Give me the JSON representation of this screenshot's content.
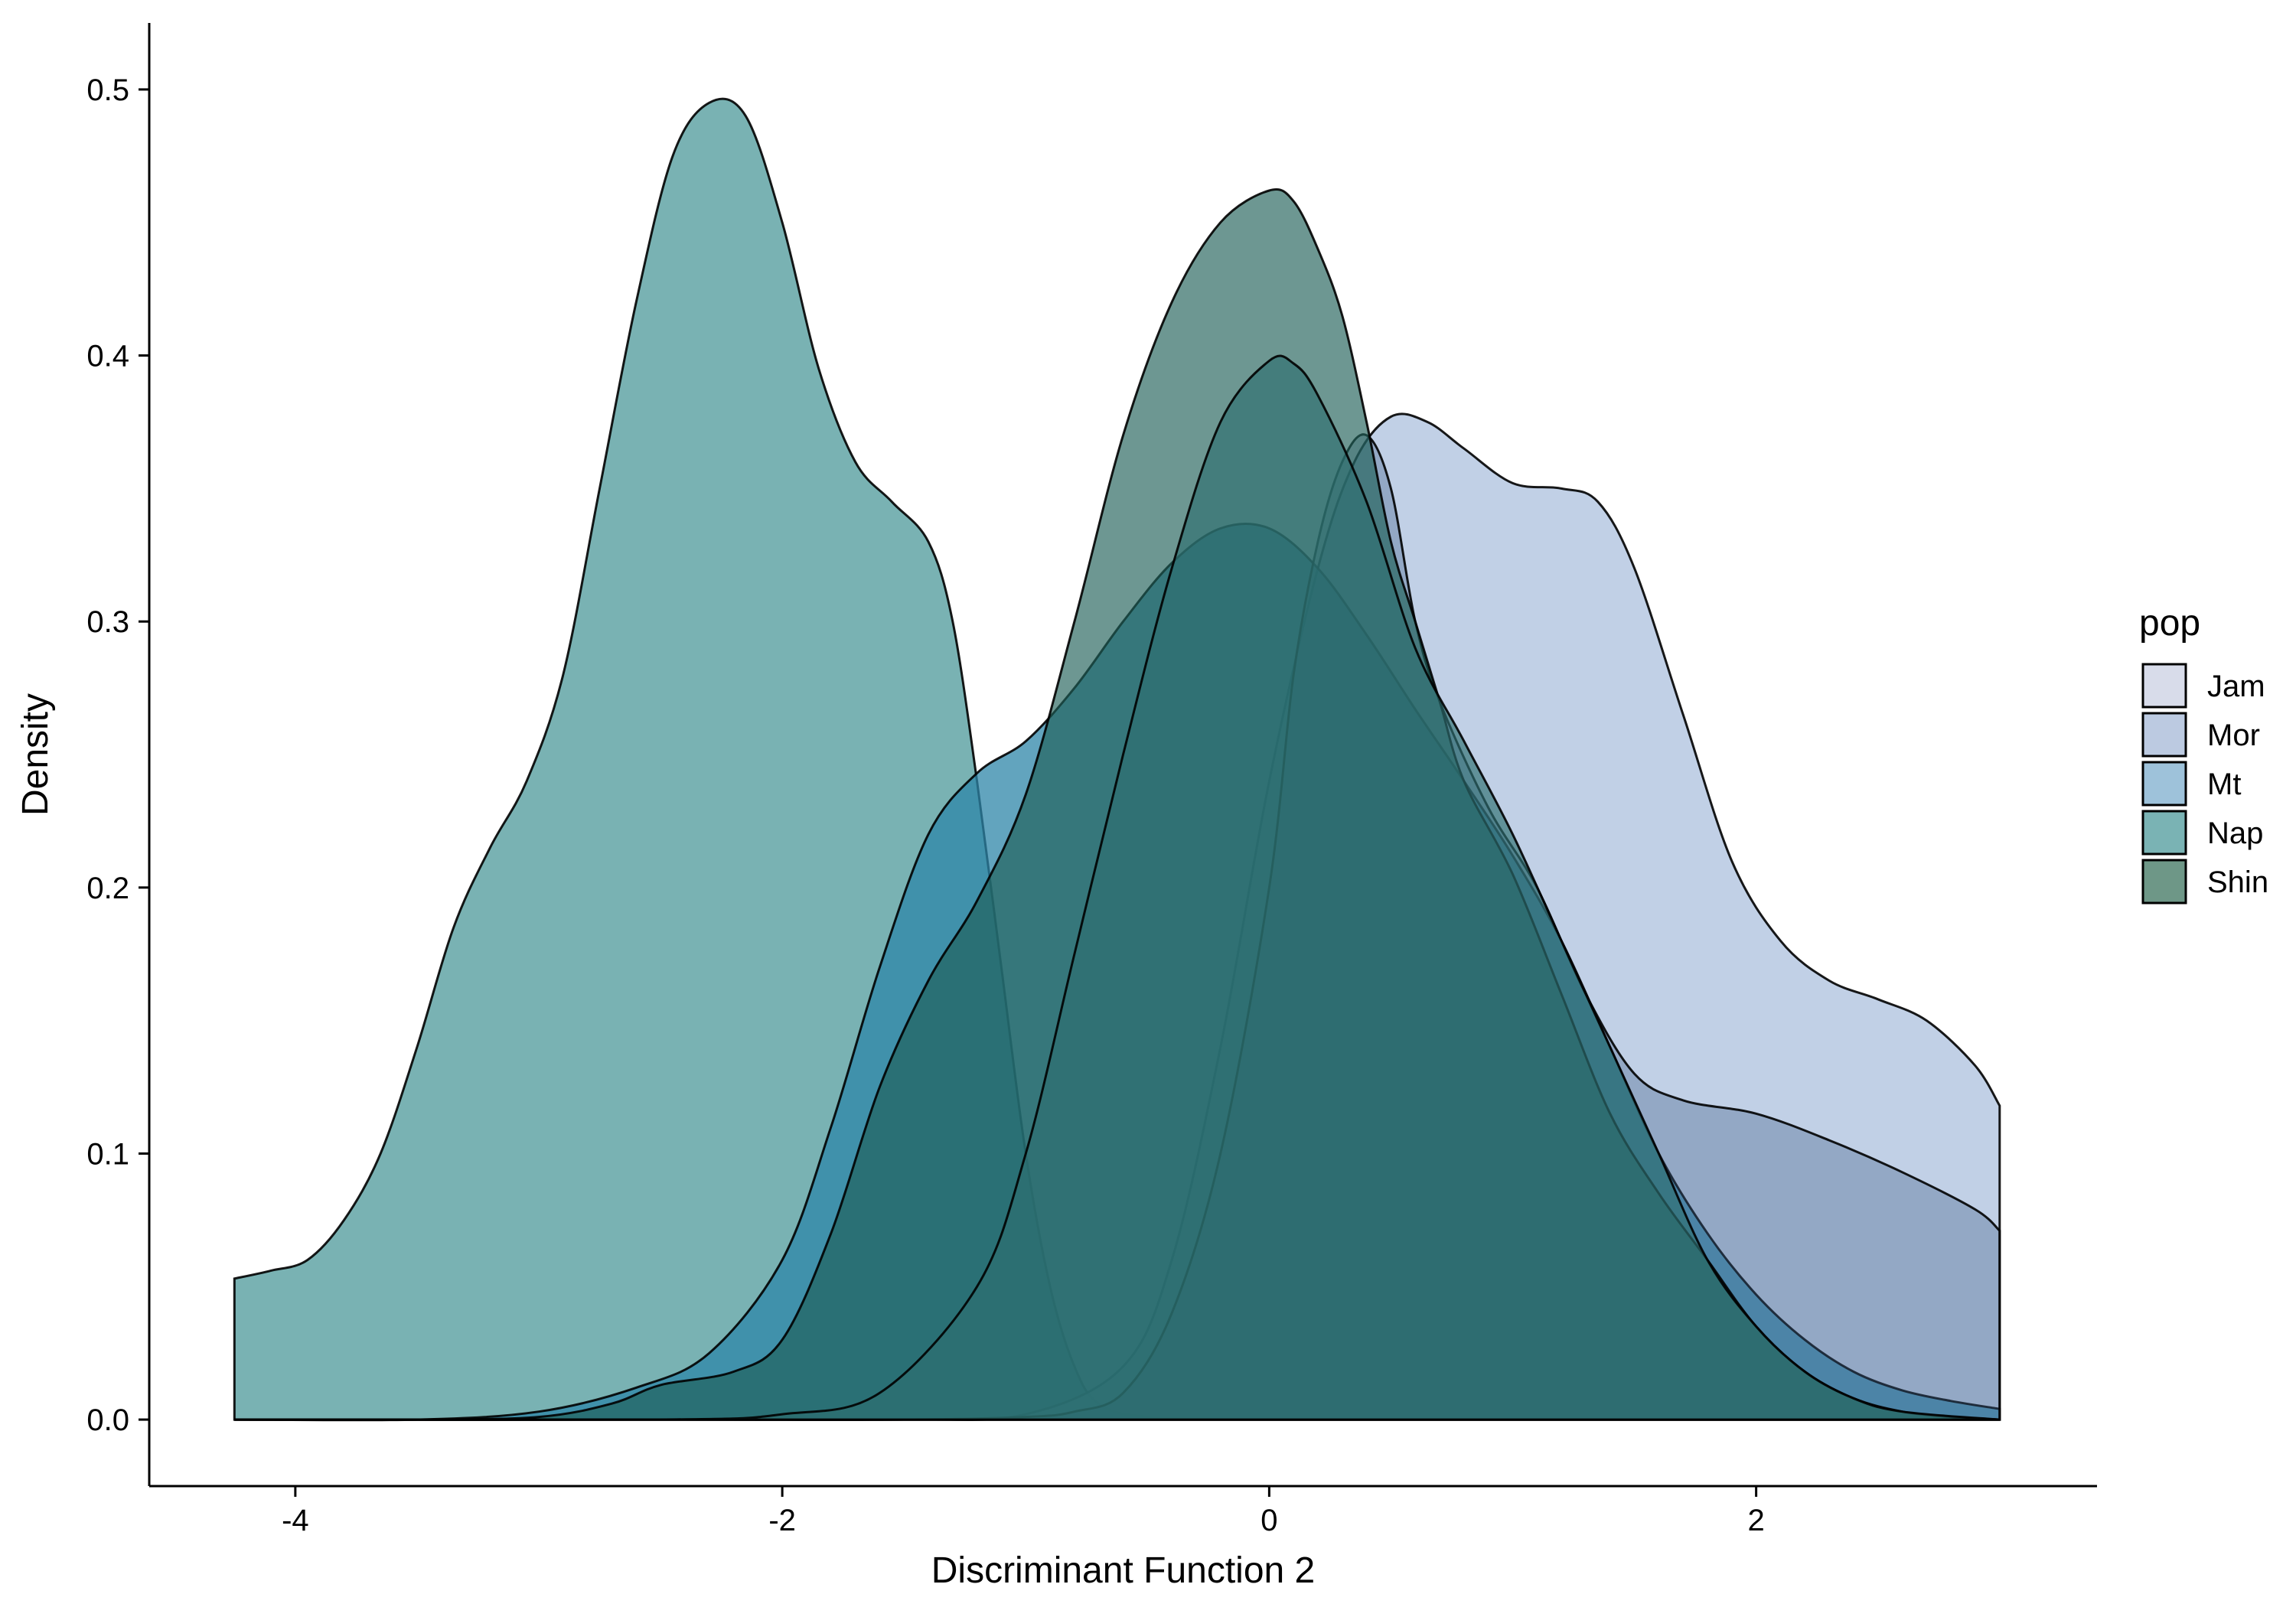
{
  "chart_data": {
    "type": "area",
    "title": "",
    "xlabel": "Discriminant Function 2",
    "ylabel": "Density",
    "xlim": [
      -4.6,
      3.4
    ],
    "ylim": [
      -0.025,
      0.525
    ],
    "xticks": [
      -4,
      -2,
      0,
      2
    ],
    "xtick_labels": [
      "-4",
      "-2",
      "0",
      "2"
    ],
    "yticks": [
      0.0,
      0.1,
      0.2,
      0.3,
      0.4,
      0.5
    ],
    "ytick_labels": [
      "0.0",
      "0.1",
      "0.2",
      "0.3",
      "0.4",
      "0.5"
    ],
    "grid": false,
    "legend": {
      "title": "pop",
      "position": "right"
    },
    "series": [
      {
        "name": "Jam",
        "color": "#3f5f87",
        "fill_opacity": 0.35,
        "points": [
          [
            -4.25,
            0.0
          ],
          [
            -2.5,
            0.0
          ],
          [
            -1.5,
            0.0
          ],
          [
            -1.0,
            0.001
          ],
          [
            -0.8,
            0.003
          ],
          [
            -0.6,
            0.01
          ],
          [
            -0.4,
            0.04
          ],
          [
            -0.2,
            0.1
          ],
          [
            0.0,
            0.2
          ],
          [
            0.1,
            0.28
          ],
          [
            0.2,
            0.33
          ],
          [
            0.3,
            0.36
          ],
          [
            0.4,
            0.37
          ],
          [
            0.5,
            0.35
          ],
          [
            0.6,
            0.3
          ],
          [
            0.7,
            0.27
          ],
          [
            0.9,
            0.23
          ],
          [
            1.1,
            0.2
          ],
          [
            1.3,
            0.16
          ],
          [
            1.5,
            0.13
          ],
          [
            1.7,
            0.12
          ],
          [
            2.0,
            0.115
          ],
          [
            2.3,
            0.105
          ],
          [
            2.6,
            0.093
          ],
          [
            2.9,
            0.079
          ],
          [
            3.0,
            0.071
          ]
        ]
      },
      {
        "name": "Mor",
        "color": "#b6c8e2",
        "fill_opacity": 0.85,
        "points": [
          [
            -4.25,
            0.0
          ],
          [
            -2.5,
            0.0
          ],
          [
            -1.5,
            0.0
          ],
          [
            -1.0,
            0.002
          ],
          [
            -0.6,
            0.02
          ],
          [
            -0.4,
            0.06
          ],
          [
            -0.2,
            0.14
          ],
          [
            0.0,
            0.24
          ],
          [
            0.2,
            0.32
          ],
          [
            0.35,
            0.36
          ],
          [
            0.5,
            0.377
          ],
          [
            0.65,
            0.375
          ],
          [
            0.8,
            0.365
          ],
          [
            1.0,
            0.352
          ],
          [
            1.2,
            0.35
          ],
          [
            1.35,
            0.345
          ],
          [
            1.5,
            0.32
          ],
          [
            1.7,
            0.265
          ],
          [
            1.9,
            0.21
          ],
          [
            2.1,
            0.18
          ],
          [
            2.3,
            0.165
          ],
          [
            2.5,
            0.158
          ],
          [
            2.7,
            0.15
          ],
          [
            2.9,
            0.133
          ],
          [
            3.0,
            0.118
          ]
        ]
      },
      {
        "name": "Mt",
        "color": "#2e86a8",
        "fill_opacity": 0.75,
        "points": [
          [
            -4.25,
            0.0
          ],
          [
            -3.5,
            0.0
          ],
          [
            -3.0,
            0.003
          ],
          [
            -2.6,
            0.012
          ],
          [
            -2.3,
            0.025
          ],
          [
            -2.0,
            0.06
          ],
          [
            -1.8,
            0.11
          ],
          [
            -1.6,
            0.17
          ],
          [
            -1.4,
            0.22
          ],
          [
            -1.2,
            0.243
          ],
          [
            -1.0,
            0.255
          ],
          [
            -0.8,
            0.275
          ],
          [
            -0.6,
            0.3
          ],
          [
            -0.4,
            0.322
          ],
          [
            -0.2,
            0.335
          ],
          [
            0.0,
            0.335
          ],
          [
            0.2,
            0.32
          ],
          [
            0.4,
            0.295
          ],
          [
            0.6,
            0.267
          ],
          [
            0.8,
            0.24
          ],
          [
            1.0,
            0.212
          ],
          [
            1.2,
            0.18
          ],
          [
            1.4,
            0.14
          ],
          [
            1.6,
            0.1
          ],
          [
            1.8,
            0.07
          ],
          [
            2.0,
            0.047
          ],
          [
            2.2,
            0.03
          ],
          [
            2.4,
            0.018
          ],
          [
            2.6,
            0.011
          ],
          [
            2.8,
            0.007
          ],
          [
            3.0,
            0.004
          ]
        ]
      },
      {
        "name": "Nap",
        "color": "#62a4a6",
        "fill_opacity": 0.85,
        "points": [
          [
            -4.25,
            0.053
          ],
          [
            -4.1,
            0.056
          ],
          [
            -3.95,
            0.06
          ],
          [
            -3.8,
            0.075
          ],
          [
            -3.65,
            0.1
          ],
          [
            -3.5,
            0.14
          ],
          [
            -3.35,
            0.185
          ],
          [
            -3.2,
            0.215
          ],
          [
            -3.05,
            0.24
          ],
          [
            -2.9,
            0.28
          ],
          [
            -2.75,
            0.35
          ],
          [
            -2.6,
            0.42
          ],
          [
            -2.45,
            0.475
          ],
          [
            -2.3,
            0.495
          ],
          [
            -2.15,
            0.49
          ],
          [
            -2.0,
            0.45
          ],
          [
            -1.85,
            0.395
          ],
          [
            -1.7,
            0.36
          ],
          [
            -1.55,
            0.345
          ],
          [
            -1.4,
            0.33
          ],
          [
            -1.3,
            0.3
          ],
          [
            -1.2,
            0.24
          ],
          [
            -1.1,
            0.17
          ],
          [
            -1.0,
            0.1
          ],
          [
            -0.9,
            0.05
          ],
          [
            -0.8,
            0.02
          ],
          [
            -0.7,
            0.006
          ],
          [
            -0.5,
            0.001
          ],
          [
            0.0,
            0.0
          ],
          [
            1.0,
            0.0
          ],
          [
            3.0,
            0.0
          ]
        ]
      },
      {
        "name": "Shin",
        "color": "#1f5f57",
        "fill_opacity": 0.65,
        "points": [
          [
            -4.25,
            0.0
          ],
          [
            -3.5,
            0.0
          ],
          [
            -3.0,
            0.001
          ],
          [
            -2.7,
            0.006
          ],
          [
            -2.5,
            0.013
          ],
          [
            -2.2,
            0.018
          ],
          [
            -2.0,
            0.03
          ],
          [
            -1.8,
            0.07
          ],
          [
            -1.6,
            0.125
          ],
          [
            -1.4,
            0.165
          ],
          [
            -1.2,
            0.195
          ],
          [
            -1.0,
            0.235
          ],
          [
            -0.8,
            0.3
          ],
          [
            -0.6,
            0.37
          ],
          [
            -0.4,
            0.42
          ],
          [
            -0.2,
            0.45
          ],
          [
            0.0,
            0.462
          ],
          [
            0.1,
            0.458
          ],
          [
            0.2,
            0.44
          ],
          [
            0.3,
            0.415
          ],
          [
            0.4,
            0.375
          ],
          [
            0.5,
            0.33
          ],
          [
            0.6,
            0.3
          ],
          [
            0.7,
            0.27
          ],
          [
            0.8,
            0.24
          ],
          [
            1.0,
            0.205
          ],
          [
            1.2,
            0.16
          ],
          [
            1.4,
            0.115
          ],
          [
            1.6,
            0.085
          ],
          [
            1.8,
            0.06
          ],
          [
            2.0,
            0.035
          ],
          [
            2.2,
            0.018
          ],
          [
            2.4,
            0.008
          ],
          [
            2.6,
            0.003
          ],
          [
            2.8,
            0.001
          ],
          [
            3.0,
            0.0
          ]
        ]
      },
      {
        "name": "",
        "color": "#2e6f70",
        "fill_opacity": 0.65,
        "points": [
          [
            -4.25,
            0.0
          ],
          [
            -2.5,
            0.0
          ],
          [
            -2.0,
            0.002
          ],
          [
            -1.6,
            0.01
          ],
          [
            -1.2,
            0.05
          ],
          [
            -1.0,
            0.1
          ],
          [
            -0.8,
            0.175
          ],
          [
            -0.6,
            0.25
          ],
          [
            -0.4,
            0.32
          ],
          [
            -0.2,
            0.375
          ],
          [
            0.0,
            0.398
          ],
          [
            0.1,
            0.397
          ],
          [
            0.2,
            0.385
          ],
          [
            0.4,
            0.345
          ],
          [
            0.6,
            0.29
          ],
          [
            0.8,
            0.255
          ],
          [
            1.0,
            0.22
          ],
          [
            1.2,
            0.18
          ],
          [
            1.4,
            0.14
          ],
          [
            1.6,
            0.1
          ],
          [
            1.8,
            0.06
          ],
          [
            2.0,
            0.035
          ],
          [
            2.2,
            0.018
          ],
          [
            2.4,
            0.008
          ],
          [
            2.6,
            0.003
          ],
          [
            3.0,
            0.0
          ]
        ]
      }
    ]
  }
}
